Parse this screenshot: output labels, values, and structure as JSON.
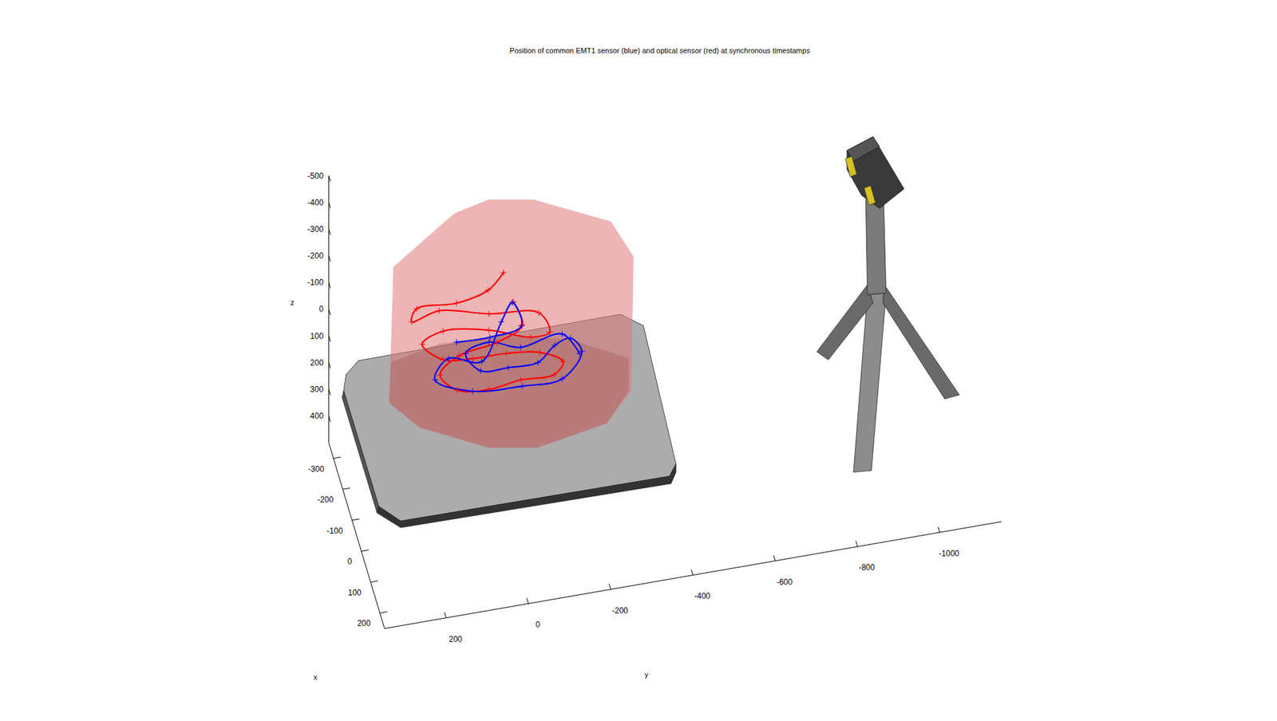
{
  "chart_data": {
    "type": "line3d",
    "title": "Position of common EMT1 sensor (blue) and optical sensor (red) at synchronous timestamps",
    "xlabel": "x",
    "ylabel": "y",
    "zlabel": "z",
    "xlim": [
      -350,
      250
    ],
    "xticks": [
      -300,
      -200,
      -100,
      0,
      100,
      200
    ],
    "ylim": [
      350,
      -1150
    ],
    "yticks": [
      200,
      0,
      -200,
      -400,
      -600,
      -800,
      -1000
    ],
    "zlim": [
      -500,
      500
    ],
    "zticks": [
      -500,
      -400,
      -300,
      -200,
      -100,
      0,
      100,
      200,
      300,
      400
    ],
    "marker": "plus",
    "series": [
      {
        "color": "#ff0000",
        "x": [
          -120,
          -110,
          -100,
          -90,
          -100,
          -110,
          -100,
          -90,
          -80,
          -90,
          -100,
          -110,
          -120,
          -110,
          -100,
          -90,
          -80,
          -90,
          -100,
          -110,
          -100,
          -90,
          -100,
          -110,
          -100,
          -90,
          -100
        ],
        "y": [
          -23,
          17,
          96,
          195,
          205,
          136,
          17,
          -102,
          -126,
          -82,
          17,
          126,
          175,
          126,
          57,
          -23,
          -102,
          -161,
          -141,
          -62,
          17,
          96,
          136,
          86,
          -3,
          -62,
          -42
        ],
        "z": [
          -305,
          -261,
          -245,
          -262,
          -204,
          -216,
          -184,
          -168,
          -101,
          -82,
          -123,
          -137,
          -89,
          -30,
          -27,
          -37,
          -31,
          31,
          86,
          96,
          99,
          69,
          13,
          -35,
          -72,
          -133,
          -214
        ]
      },
      {
        "color": "#0000ff",
        "x": [
          -100,
          -90,
          -100,
          -110,
          -100,
          -90,
          -100,
          -110,
          -100,
          -90,
          -100,
          -110,
          -100,
          -90,
          -100,
          -110,
          -100,
          -90,
          -100,
          -110,
          -100,
          -90
        ],
        "y": [
          96,
          17,
          -62,
          -42,
          -13,
          37,
          116,
          146,
          57,
          -62,
          -161,
          -211,
          -181,
          -141,
          -102,
          -32,
          37,
          76,
          17,
          -62,
          -161,
          -201
        ],
        "z": [
          -99,
          -108,
          -118,
          -199,
          -146,
          -22,
          -43,
          40,
          95,
          96,
          107,
          29,
          -40,
          -36,
          30,
          42,
          24,
          -63,
          -78,
          -26,
          -61,
          11
        ]
      }
    ]
  }
}
